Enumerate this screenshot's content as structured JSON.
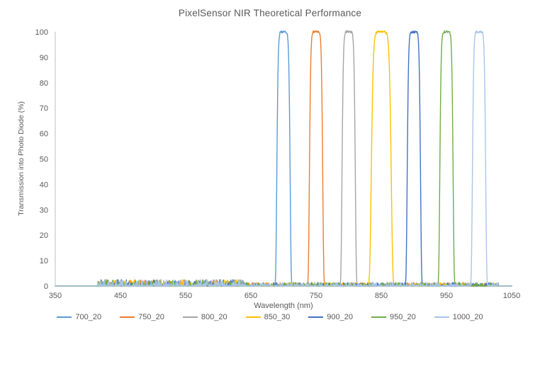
{
  "title": "PixelSensor NIR Theoretical Performance",
  "chart_data": {
    "type": "line",
    "title": "PixelSensor NIR Theoretical Performance",
    "xlabel": "Wavelength (nm)",
    "ylabel": "Transmission into Photo Diode (%)",
    "xlim": [
      350,
      1050
    ],
    "ylim": [
      0,
      100
    ],
    "x_ticks": [
      350,
      450,
      550,
      650,
      750,
      850,
      950,
      1050
    ],
    "y_ticks": [
      0,
      10,
      20,
      30,
      40,
      50,
      60,
      70,
      80,
      90,
      100
    ],
    "grid": false,
    "legend_position": "bottom",
    "axis_color": "#BFBFBF",
    "text_color": "#595959",
    "series": [
      {
        "name": "700_20",
        "color": "#5B9BD5",
        "center_nm": 700,
        "fwhm_nm": 20,
        "peak_pct": 100,
        "baseline_pct": 0
      },
      {
        "name": "750_20",
        "color": "#ED7D31",
        "center_nm": 750,
        "fwhm_nm": 20,
        "peak_pct": 100,
        "baseline_pct": 0
      },
      {
        "name": "800_20",
        "color": "#A5A5A5",
        "center_nm": 800,
        "fwhm_nm": 20,
        "peak_pct": 100,
        "baseline_pct": 0
      },
      {
        "name": "850_30",
        "color": "#FFC000",
        "center_nm": 850,
        "fwhm_nm": 30,
        "peak_pct": 100,
        "baseline_pct": 0
      },
      {
        "name": "900_20",
        "color": "#4472C4",
        "center_nm": 900,
        "fwhm_nm": 20,
        "peak_pct": 100,
        "baseline_pct": 0
      },
      {
        "name": "950_20",
        "color": "#70AD47",
        "center_nm": 950,
        "fwhm_nm": 20,
        "peak_pct": 100,
        "baseline_pct": 0
      },
      {
        "name": "1000_20",
        "color": "#A9C5E8",
        "center_nm": 1000,
        "fwhm_nm": 20,
        "peak_pct": 100,
        "baseline_pct": 0
      }
    ],
    "baseline_noise": {
      "x_range_nm": [
        415,
        1030
      ],
      "max_amplitude_pct": 2.5
    }
  }
}
